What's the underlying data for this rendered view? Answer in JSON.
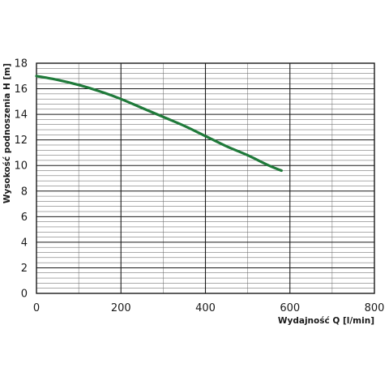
{
  "chart_data": {
    "type": "line",
    "xlabel": "Wydajność Q [l/min]",
    "ylabel": "Wysokość podnoszenia H [m]",
    "xlim": [
      0,
      800
    ],
    "ylim": [
      0,
      18
    ],
    "x_ticks": [
      "0",
      "200",
      "400",
      "600",
      "800"
    ],
    "y_ticks": [
      "0",
      "2",
      "4",
      "6",
      "8",
      "10",
      "12",
      "14",
      "16",
      "18"
    ],
    "grid": true,
    "minor_grid_step_y": 0.4,
    "series": [
      {
        "color": "#1f7a3a",
        "x": [
          0,
          50,
          100,
          150,
          200,
          250,
          300,
          350,
          400,
          450,
          500,
          550,
          580
        ],
        "y": [
          17.0,
          16.7,
          16.3,
          15.8,
          15.2,
          14.5,
          13.8,
          13.1,
          12.3,
          11.5,
          10.8,
          10.0,
          9.6
        ]
      }
    ]
  }
}
